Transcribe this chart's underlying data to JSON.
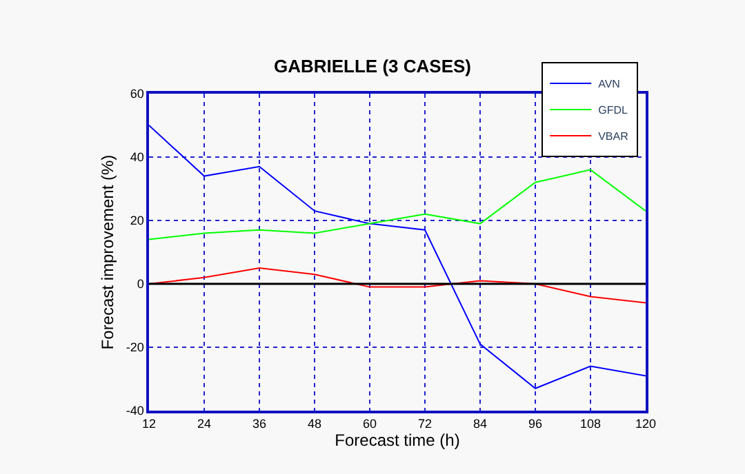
{
  "chart_data": {
    "type": "line",
    "title": "GABRIELLE (3 CASES)",
    "xlabel": "Forecast time (h)",
    "ylabel": "Forecast improvement (%)",
    "x": [
      12,
      24,
      36,
      48,
      60,
      72,
      84,
      96,
      108,
      120
    ],
    "series": [
      {
        "name": "AVN",
        "color": "#0000ff",
        "values": [
          50,
          34,
          37,
          23,
          19,
          17,
          -19,
          -33,
          -26,
          -29
        ]
      },
      {
        "name": "GFDL",
        "color": "#00ff00",
        "values": [
          14,
          16,
          17,
          16,
          19,
          22,
          19,
          32,
          36,
          23
        ]
      },
      {
        "name": "VBAR",
        "color": "#ff0000",
        "values": [
          0,
          2,
          5,
          3,
          -1,
          -1,
          1,
          0,
          -4,
          -6
        ]
      }
    ],
    "xlim": [
      12,
      120
    ],
    "xticks": [
      12,
      24,
      36,
      48,
      60,
      72,
      84,
      96,
      108,
      120
    ],
    "ylim": [
      -40,
      60
    ],
    "yticks": [
      -40,
      -20,
      0,
      20,
      40,
      60
    ],
    "ref_lines": [
      {
        "axis": "y",
        "value": 0,
        "color": "#000000"
      }
    ],
    "grid": true,
    "legend": "top right",
    "marker": "none",
    "line_style": "solid"
  }
}
